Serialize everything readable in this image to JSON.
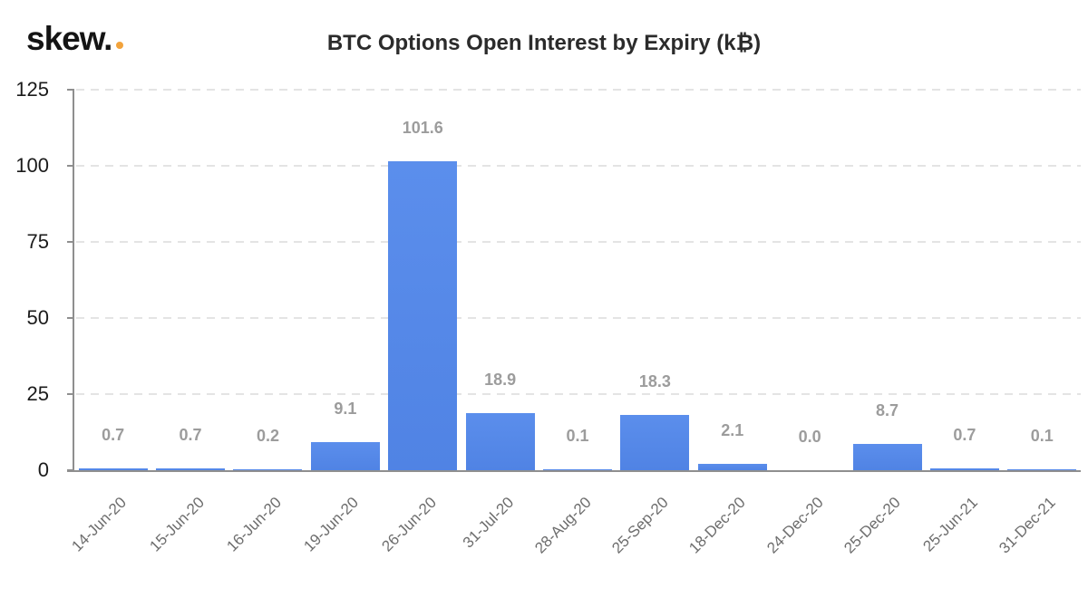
{
  "brand": {
    "logo_text": "skew.",
    "dot_color": "#f2a33c"
  },
  "chart_data": {
    "type": "bar",
    "title": "BTC Options Open Interest by Expiry (k₿)",
    "categories": [
      "14-Jun-20",
      "15-Jun-20",
      "16-Jun-20",
      "19-Jun-20",
      "26-Jun-20",
      "31-Jul-20",
      "28-Aug-20",
      "25-Sep-20",
      "18-Dec-20",
      "24-Dec-20",
      "25-Dec-20",
      "25-Jun-21",
      "31-Dec-21"
    ],
    "values": [
      0.7,
      0.7,
      0.2,
      9.1,
      101.6,
      18.9,
      0.1,
      18.3,
      2.1,
      0.0,
      8.7,
      0.7,
      0.1
    ],
    "data_labels": [
      "0.7",
      "0.7",
      "0.2",
      "9.1",
      "101.6",
      "18.9",
      "0.1",
      "18.3",
      "2.1",
      "0.0",
      "8.7",
      "0.7",
      "0.1"
    ],
    "xlabel": "",
    "ylabel": "",
    "y_ticks": [
      0,
      25,
      50,
      75,
      100,
      125
    ],
    "ylim": [
      0,
      125
    ],
    "grid": "horizontal-dashed",
    "legend": "none",
    "bar_color": "#5487e8",
    "grid_color": "#e4e4e4",
    "axis_color": "#8f8f8f",
    "value_label_color": "#9c9c9c",
    "x_label_color": "#6d6d6d",
    "y_label_color": "#1b1b1b"
  }
}
